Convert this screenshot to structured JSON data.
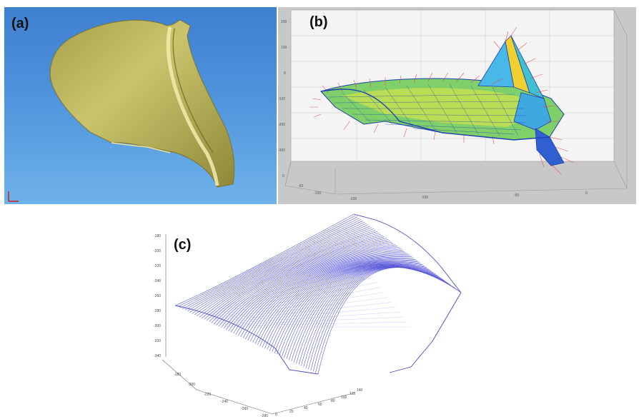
{
  "figure": {
    "panels": [
      {
        "label": "(a)"
      },
      {
        "label": "(b)"
      },
      {
        "label": "(c)"
      }
    ]
  },
  "colors": {
    "surface_a": "#c9c26a",
    "background_a": "#4f93dc",
    "background_b": "#c8c8c8",
    "mesh_c": "#5a5ad8",
    "arrows_b": "#e04040"
  },
  "chart_data": [
    {
      "type": "3d-surface",
      "panel": "(b)",
      "z_ticks": [
        "200",
        "100",
        "0",
        "-100",
        "-200",
        "-300"
      ],
      "x_ticks": [
        "-150",
        "-100",
        "-50",
        "0"
      ],
      "y_ticks": [
        "0",
        "-50",
        "-100"
      ]
    },
    {
      "type": "3d-wireframe",
      "panel": "(c)",
      "z_ticks": [
        "-180",
        "-200",
        "-220",
        "-240",
        "-260",
        "-280",
        "-300",
        "-320",
        "-340"
      ],
      "y_ticks": [
        "-180",
        "-200",
        "-220",
        "-240",
        "-260",
        "-280"
      ],
      "x_ticks": [
        "0",
        "20",
        "40",
        "60",
        "80",
        "100",
        "120",
        "140"
      ]
    }
  ]
}
